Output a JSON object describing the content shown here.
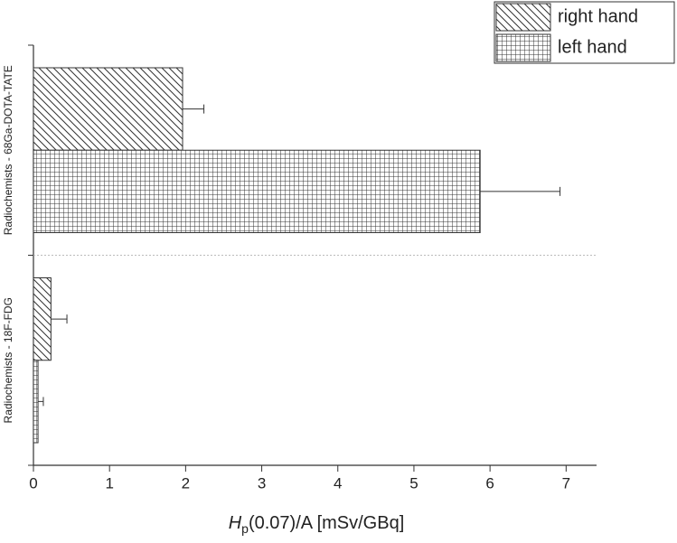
{
  "chart_data": {
    "type": "bar",
    "orientation": "horizontal",
    "categories": [
      "Radiochemists - 68Ga-DOTA-TATE",
      "Radiochemists - 18F-FDG"
    ],
    "series": [
      {
        "name": "right hand",
        "pattern": "diagonal",
        "color": "#333333",
        "values": [
          1.96,
          0.23
        ],
        "errors": [
          0.28,
          0.21
        ]
      },
      {
        "name": "left hand",
        "pattern": "grid",
        "color": "#333333",
        "values": [
          5.87,
          0.06
        ],
        "errors": [
          1.05,
          0.07
        ]
      }
    ],
    "xlabel": {
      "main": "H",
      "sub": "p",
      "rest": "(0.07)/A [mSv/GBq]"
    },
    "xlim": [
      0,
      7.4
    ],
    "xticks": [
      0,
      1,
      2,
      3,
      4,
      5,
      6,
      7
    ],
    "legend": "top-right"
  }
}
